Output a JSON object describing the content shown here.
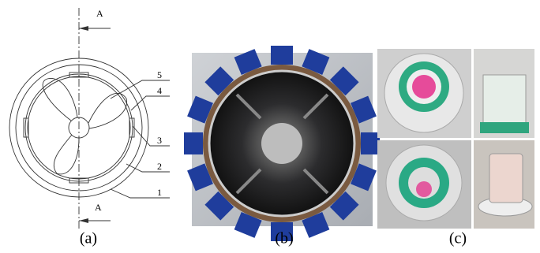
{
  "drawing": {
    "section_labels": [
      "A",
      "A"
    ],
    "part_labels": [
      "5",
      "4",
      "3",
      "2",
      "1"
    ]
  },
  "captions": [
    "(a)",
    "(b)",
    "(c)"
  ]
}
